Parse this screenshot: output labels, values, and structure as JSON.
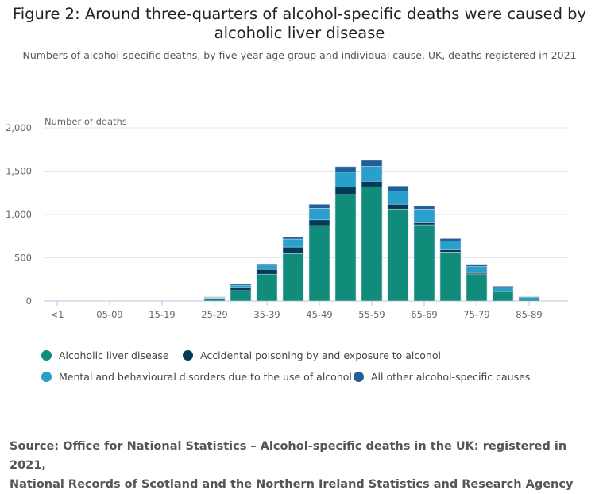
{
  "title": "Figure 2: Around three-quarters of alcohol-specific deaths were caused by alcoholic liver disease",
  "subtitle": "Numbers of alcohol-specific deaths, by five-year age group and individual cause, UK, deaths registered in 2021",
  "source_line1": "Source: Office for National Statistics – Alcohol-specific deaths in the UK: registered in 2021,",
  "source_line2": "National Records of Scotland and the Northern Ireland Statistics and Research Agency",
  "chart_data": {
    "type": "bar",
    "stacked": true,
    "ylabel": "Number of deaths",
    "ylim": [
      0,
      2000
    ],
    "y_ticks": [
      "0",
      "500",
      "1,000",
      "1,500",
      "2,000"
    ],
    "grid": true,
    "legend_position": "bottom",
    "x_tick_labels": [
      "<1",
      "05-09",
      "15-19",
      "25-29",
      "35-39",
      "45-49",
      "55-59",
      "65-69",
      "75-79",
      "85-89"
    ],
    "series": [
      {
        "name": "Alcoholic liver disease",
        "color": "#118c7b",
        "values": [
          0,
          0,
          0,
          0,
          0,
          0,
          30,
          120,
          310,
          546,
          871,
          1230,
          1319,
          1062,
          880,
          565,
          313,
          110,
          20,
          0
        ]
      },
      {
        "name": "Accidental poisoning by and exposure to alcohol",
        "color": "#003c57",
        "values": [
          0,
          0,
          0,
          0,
          0,
          0,
          7,
          37,
          55,
          77,
          67,
          86,
          64,
          55,
          25,
          28,
          15,
          6,
          3,
          0
        ]
      },
      {
        "name": "Mental and behavioural disorders due to the use of alcohol",
        "color": "#27a0cc",
        "values": [
          0,
          0,
          0,
          0,
          0,
          0,
          6,
          25,
          50,
          92,
          132,
          172,
          172,
          153,
          156,
          98,
          70,
          40,
          22,
          0
        ]
      },
      {
        "name": "All other alcohol-specific causes",
        "color": "#206095",
        "values": [
          0,
          0,
          0,
          0,
          0,
          0,
          4,
          15,
          12,
          25,
          46,
          64,
          70,
          58,
          37,
          30,
          18,
          15,
          5,
          0
        ]
      }
    ]
  }
}
